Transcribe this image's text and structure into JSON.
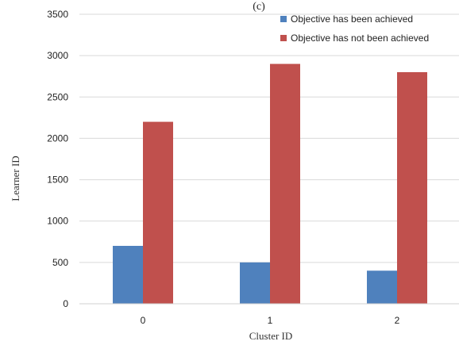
{
  "chart_data": {
    "type": "bar",
    "top_label": "(c)",
    "xlabel": "Cluster ID",
    "ylabel": "Learner ID",
    "categories": [
      "0",
      "1",
      "2"
    ],
    "ylim": [
      0,
      3500
    ],
    "yticks": [
      0,
      500,
      1000,
      1500,
      2000,
      2500,
      3000,
      3500
    ],
    "grid": true,
    "legend_position": "top-right",
    "series": [
      {
        "name": "Objective has been achieved",
        "color": "#4f81bd",
        "values": [
          700,
          500,
          400
        ]
      },
      {
        "name": "Objective has not been achieved",
        "color": "#c0504d",
        "values": [
          2200,
          2900,
          2800
        ]
      }
    ]
  }
}
